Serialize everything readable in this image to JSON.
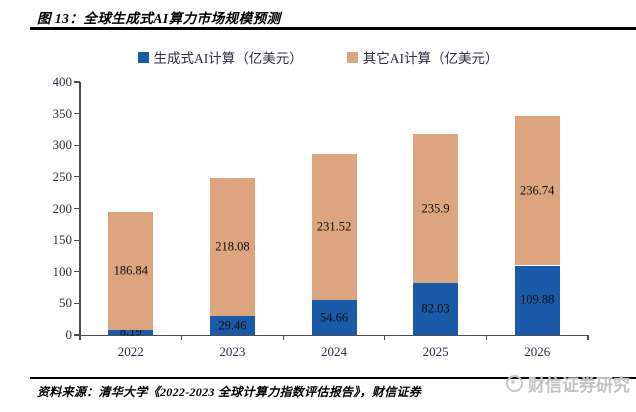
{
  "figure": {
    "title": "图 13：全球生成式AI算力市场规模预测",
    "source_note": "资料来源：清华大学《2022-2023 全球计算力指数评估报告》，财信证券",
    "watermark_text": "财信证券研究"
  },
  "colors": {
    "generative_blue": "#1b5aa8",
    "other_tan": "#dca57f",
    "axis_line": "#4d4d4d",
    "tick_text": "#2e2e44",
    "bar_label_text": "#0d0d0d",
    "watermark_gray": "#c3c3c3"
  },
  "chart_data": {
    "type": "bar",
    "stacked": true,
    "title": "全球生成式AI算力市场规模预测",
    "categories": [
      "2022",
      "2023",
      "2024",
      "2025",
      "2026"
    ],
    "series": [
      {
        "name": "生成式AI计算（亿美元）",
        "color": "#1b5aa8",
        "values": [
          8.19,
          29.46,
          54.66,
          82.03,
          109.88
        ]
      },
      {
        "name": "其它AI计算（亿美元）",
        "color": "#dca57f",
        "values": [
          186.84,
          218.08,
          231.52,
          235.9,
          236.74
        ]
      }
    ],
    "xlabel": "",
    "ylabel": "",
    "ylim": [
      0,
      400
    ],
    "ytick_step": 50,
    "yticks": [
      0,
      50,
      100,
      150,
      200,
      250,
      300,
      350,
      400
    ],
    "grid": false,
    "legend_position": "top",
    "data_labels": "inside-center"
  }
}
